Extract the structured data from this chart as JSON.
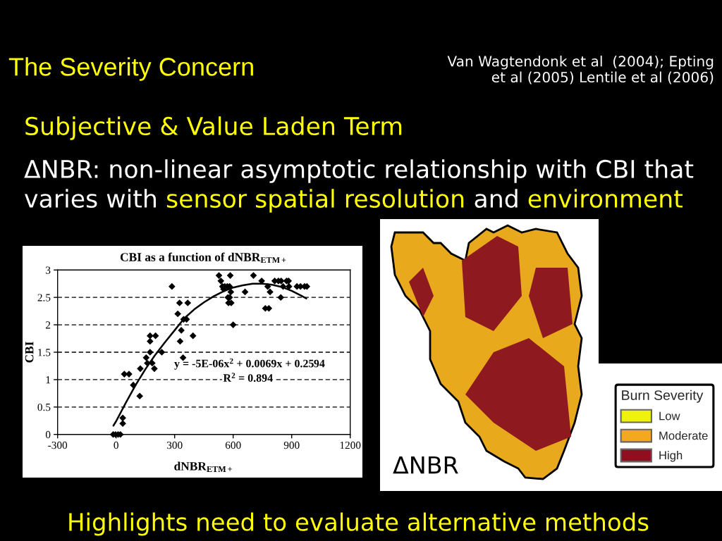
{
  "chart_data": [
    {
      "type": "other",
      "title": "The Severity Concern",
      "annotations": [
        "Van Wagtendonk et al  (2004); Epting\net al (2005) Lentile et al (2006)",
        "Subjective & Value Laden Term",
        "ΔNBR: non-linear asymptotic relationship with CBI that",
        "varies with",
        "sensor spatial resolution",
        "and",
        "environment",
        "Highlights need to evaluate alternative methods"
      ]
    },
    {
      "type": "scatter",
      "title": "CBI as a function of dNBR$_{ETM+}$",
      "xlabel": "dNBR$_{ETM+}$",
      "ylabel": "CBI",
      "xlim": [
        -300,
        1200
      ],
      "xticks": [
        -300,
        0,
        300,
        600,
        900,
        1200
      ],
      "ylim": [
        0,
        3
      ],
      "yticks": [
        0,
        0.5,
        1,
        1.5,
        2,
        2.5,
        3
      ],
      "grid": "y",
      "series": [
        {
          "color": "#000000",
          "marker": "diamond",
          "x": [
            -15,
            -3,
            10,
            22,
            34,
            34,
            42,
            66,
            88,
            121,
            124,
            154,
            160,
            174,
            174,
            174,
            185,
            196,
            202,
            234,
            286,
            316,
            325,
            328,
            334,
            343,
            346,
            361,
            367,
            394,
            527,
            537,
            545,
            551,
            557,
            570,
            573,
            576,
            582,
            582,
            585,
            588,
            590,
            600,
            661,
            704,
            746,
            765,
            777,
            783,
            789,
            813,
            832,
            844,
            846,
            856,
            874,
            884,
            886,
            927,
            945,
            966,
            978
          ],
          "values": [
            0,
            0,
            0,
            0,
            0.3,
            0.2,
            1.1,
            1.1,
            0.9,
            0.7,
            1.2,
            1.4,
            1.3,
            1.5,
            1.7,
            1.8,
            1.3,
            1.2,
            1.8,
            1.5,
            2.7,
            2.2,
            2.4,
            1.7,
            1.9,
            1.4,
            2.1,
            2.1,
            2.4,
            1.8,
            2.9,
            2.8,
            2.7,
            2.65,
            2.7,
            2.7,
            2.5,
            2.4,
            2.7,
            2.5,
            2.9,
            2.6,
            2.4,
            2.0,
            2.6,
            2.9,
            2.8,
            2.3,
            2.7,
            2.3,
            2.6,
            2.8,
            2.8,
            2.5,
            2.8,
            2.7,
            2.8,
            2.8,
            2.7,
            2.7,
            2.7,
            2.7,
            2.7
          ]
        },
        {
          "type": "line",
          "color": "#000000",
          "marker": "none",
          "x": [
            -14,
            0,
            50,
            100,
            150,
            200,
            250,
            300,
            350,
            400,
            450,
            500,
            550,
            600,
            650,
            700,
            750,
            800,
            850,
            900,
            950,
            975
          ],
          "values": [
            0.16,
            0.24,
            0.58,
            0.9,
            1.19,
            1.45,
            1.68,
            1.9,
            2.12,
            2.28,
            2.41,
            2.52,
            2.61,
            2.68,
            2.72,
            2.75,
            2.75,
            2.73,
            2.69,
            2.62,
            2.53,
            2.48
          ]
        }
      ],
      "annotations": [
        "y = -5E-06x$^{2}$ + 0.0069x + 0.2594",
        "R$^{2}$ = 0.894"
      ]
    },
    {
      "type": "other",
      "legend_title": "Burn Severity",
      "categories": [
        "Low",
        "Moderate",
        "High"
      ],
      "colors": [
        "#eef20c",
        "#f4a81d",
        "#8e0f1f"
      ],
      "annotations": [
        "ΔNBR"
      ]
    }
  ]
}
